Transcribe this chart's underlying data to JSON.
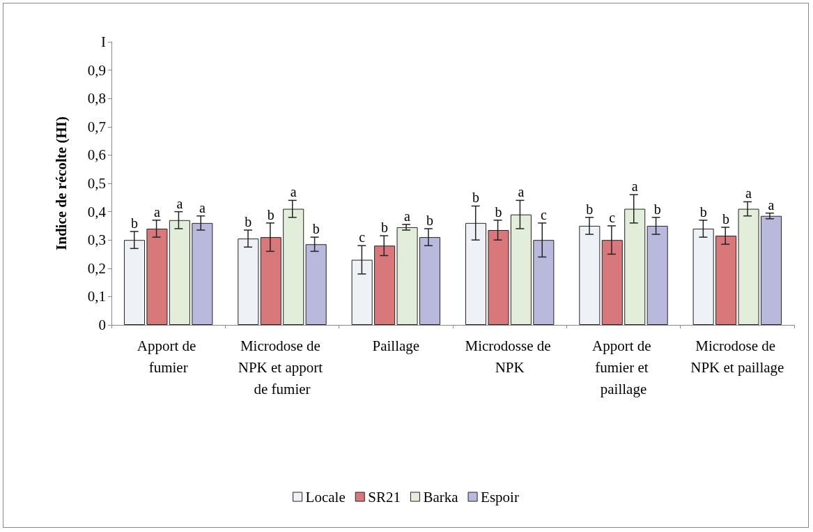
{
  "chart_data": {
    "type": "bar",
    "ylabel": "Indice de récolte (HI)",
    "categories": [
      "Apport de fumier",
      "Microdose de NPK et apport de fumier",
      "Paillage",
      "Microdosse de NPK",
      "Apport de fumier et paillage",
      "Microdose de NPK et paillage"
    ],
    "series": [
      {
        "name": "Locale",
        "color": "#eef2f6",
        "values": [
          0.3,
          0.305,
          0.23,
          0.36,
          0.35,
          0.34
        ],
        "errors": [
          0.03,
          0.03,
          0.05,
          0.06,
          0.03,
          0.03
        ],
        "value_labels": [
          "b",
          "b",
          "c",
          "b",
          "b",
          "b"
        ]
      },
      {
        "name": "SR21",
        "color": "#d9787a",
        "values": [
          0.34,
          0.31,
          0.28,
          0.335,
          0.3,
          0.315
        ],
        "errors": [
          0.03,
          0.05,
          0.035,
          0.035,
          0.05,
          0.03
        ],
        "value_labels": [
          "a",
          "b",
          "b",
          "b",
          "c",
          "b"
        ]
      },
      {
        "name": "Barka",
        "color": "#e2edda",
        "values": [
          0.37,
          0.41,
          0.345,
          0.39,
          0.41,
          0.41
        ],
        "errors": [
          0.03,
          0.03,
          0.01,
          0.05,
          0.05,
          0.025
        ],
        "value_labels": [
          "a",
          "a",
          "a",
          "a",
          "a",
          "a"
        ]
      },
      {
        "name": "Espoir",
        "color": "#b9b9de",
        "values": [
          0.36,
          0.285,
          0.31,
          0.3,
          0.35,
          0.385
        ],
        "errors": [
          0.025,
          0.025,
          0.03,
          0.06,
          0.03,
          0.01
        ],
        "value_labels": [
          "a",
          "b",
          "b",
          "c",
          "b",
          "a"
        ]
      }
    ],
    "ylim": [
      0,
      1
    ],
    "yticks": [
      0,
      {
        "value": 0.1,
        "label": "0,1"
      },
      {
        "value": 0.2,
        "label": "0,2"
      },
      {
        "value": 0.3,
        "label": "0,3"
      },
      {
        "value": 0.4,
        "label": "0,4"
      },
      {
        "value": 0.5,
        "label": "0,5"
      },
      {
        "value": 0.6,
        "label": "0,6"
      },
      {
        "value": 0.7,
        "label": "0,7"
      },
      {
        "value": 0.8,
        "label": "0,8"
      },
      {
        "value": 0.9,
        "label": "0,9"
      },
      {
        "value": 1,
        "label": "I"
      }
    ],
    "grid": false,
    "legend": "bottom"
  }
}
